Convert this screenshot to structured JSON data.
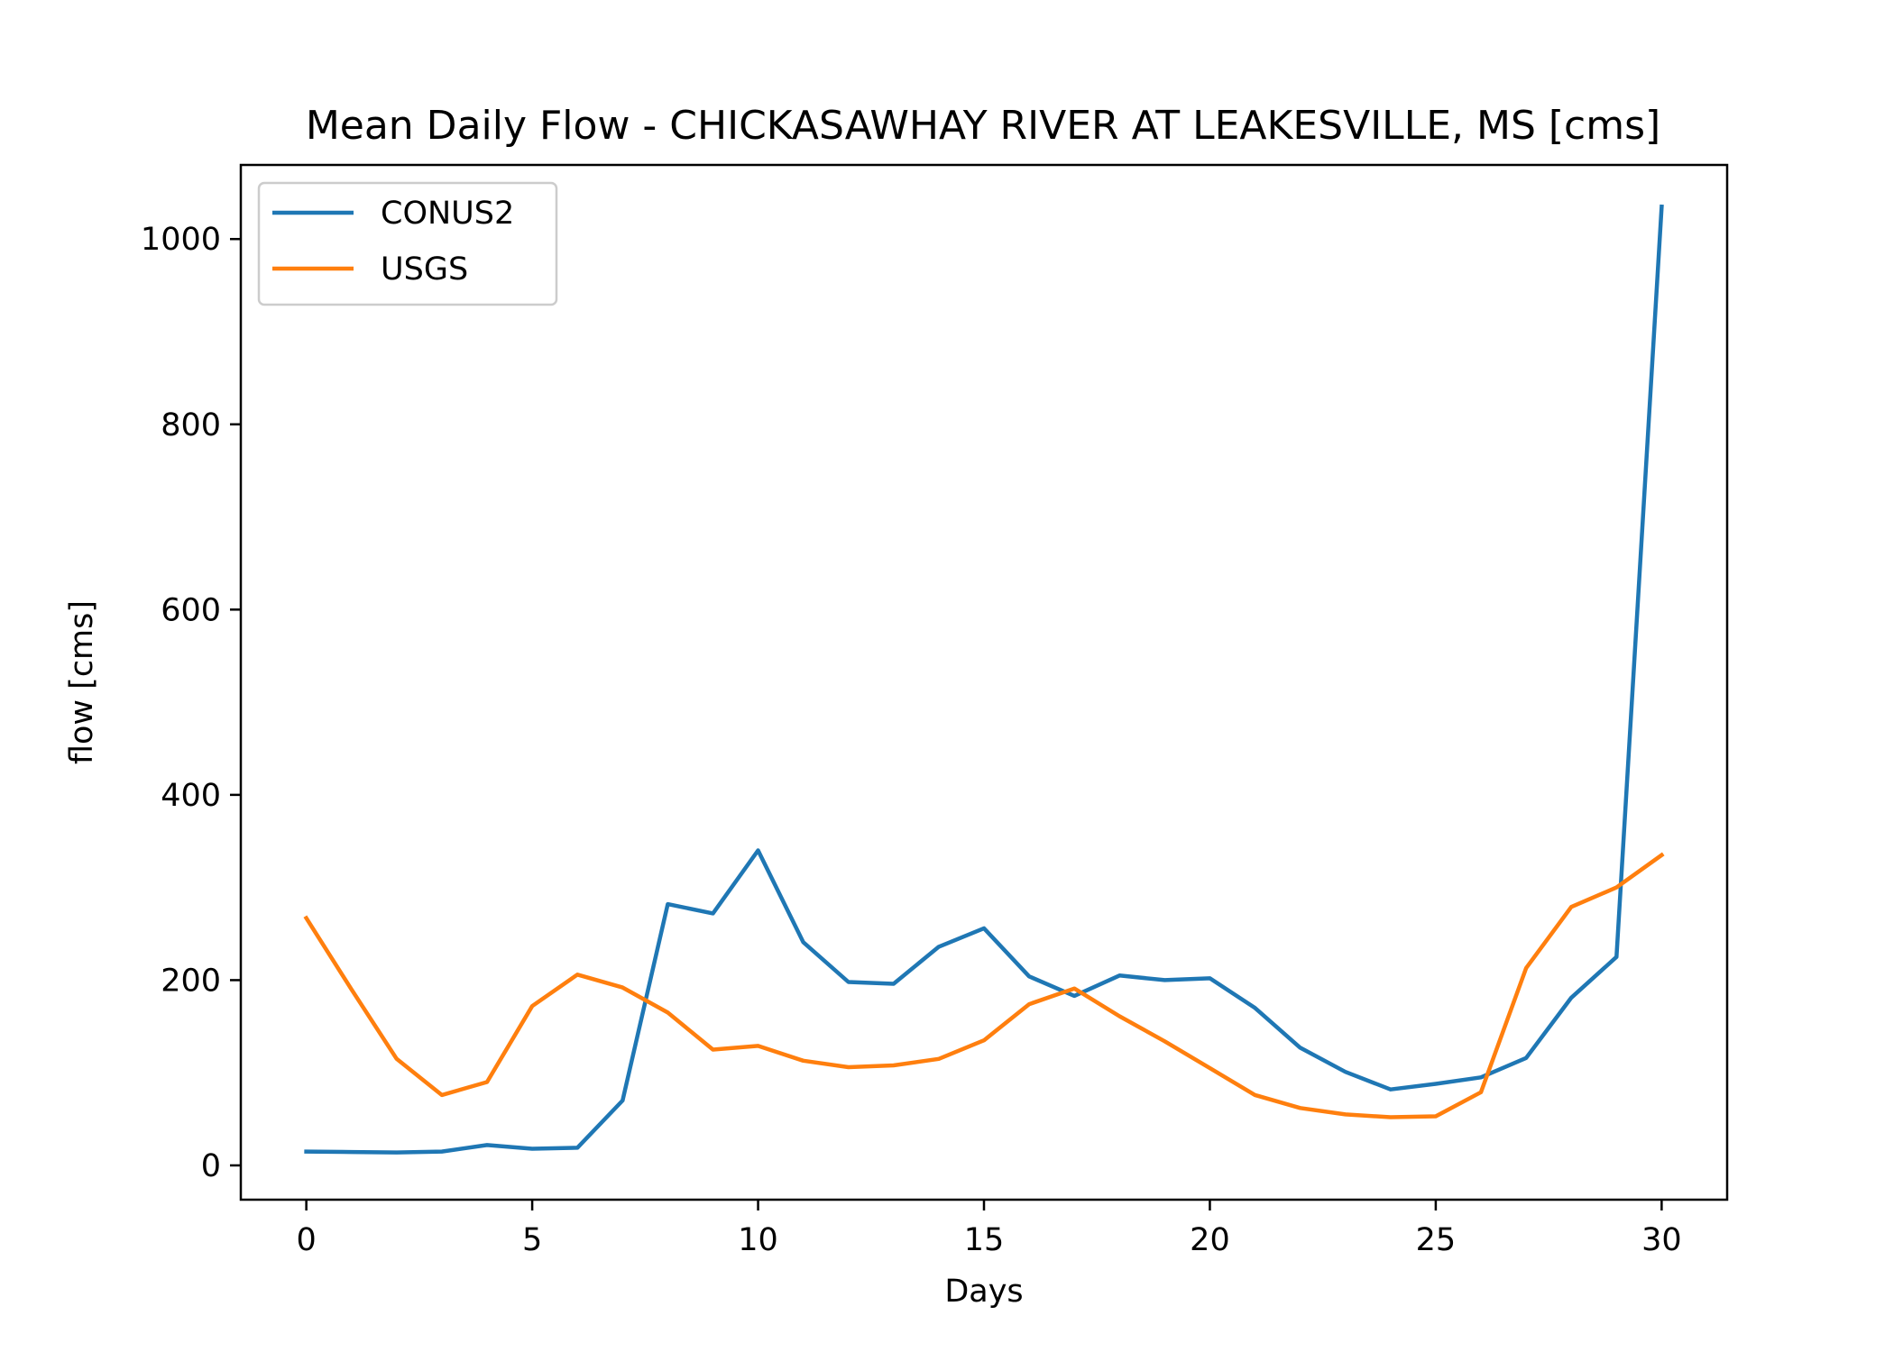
{
  "chart_data": {
    "type": "line",
    "title": "Mean Daily Flow - CHICKASAWHAY RIVER AT LEAKESVILLE, MS [cms]",
    "xlabel": "Days",
    "ylabel": "flow [cms]",
    "xlim": [
      -1.45,
      31.45
    ],
    "ylim": [
      -37,
      1080
    ],
    "xticks": [
      0,
      5,
      10,
      15,
      20,
      25,
      30
    ],
    "yticks": [
      0,
      200,
      400,
      600,
      800,
      1000
    ],
    "grid": false,
    "legend_position": "upper-left",
    "x": [
      0,
      1,
      2,
      3,
      4,
      5,
      6,
      7,
      8,
      9,
      10,
      11,
      12,
      13,
      14,
      15,
      16,
      17,
      18,
      19,
      20,
      21,
      22,
      23,
      24,
      25,
      26,
      27,
      28,
      29,
      30
    ],
    "series": [
      {
        "name": "CONUS2",
        "color": "#1f77b4",
        "values": [
          15,
          14.5,
          14,
          15,
          22,
          18,
          19,
          70,
          282,
          272,
          340,
          241,
          198,
          196,
          236,
          256,
          204,
          183,
          205,
          200,
          202,
          170,
          127,
          101,
          82,
          88,
          95,
          116,
          181,
          225,
          1035
        ]
      },
      {
        "name": "USGS",
        "color": "#ff7f0e",
        "values": [
          267,
          190,
          115,
          76,
          90,
          172,
          206,
          192,
          165,
          125,
          129,
          113,
          106,
          108,
          115,
          135,
          174,
          191,
          161,
          134,
          105,
          76,
          62,
          55,
          52,
          53,
          79,
          213,
          279,
          300,
          335
        ]
      }
    ]
  }
}
